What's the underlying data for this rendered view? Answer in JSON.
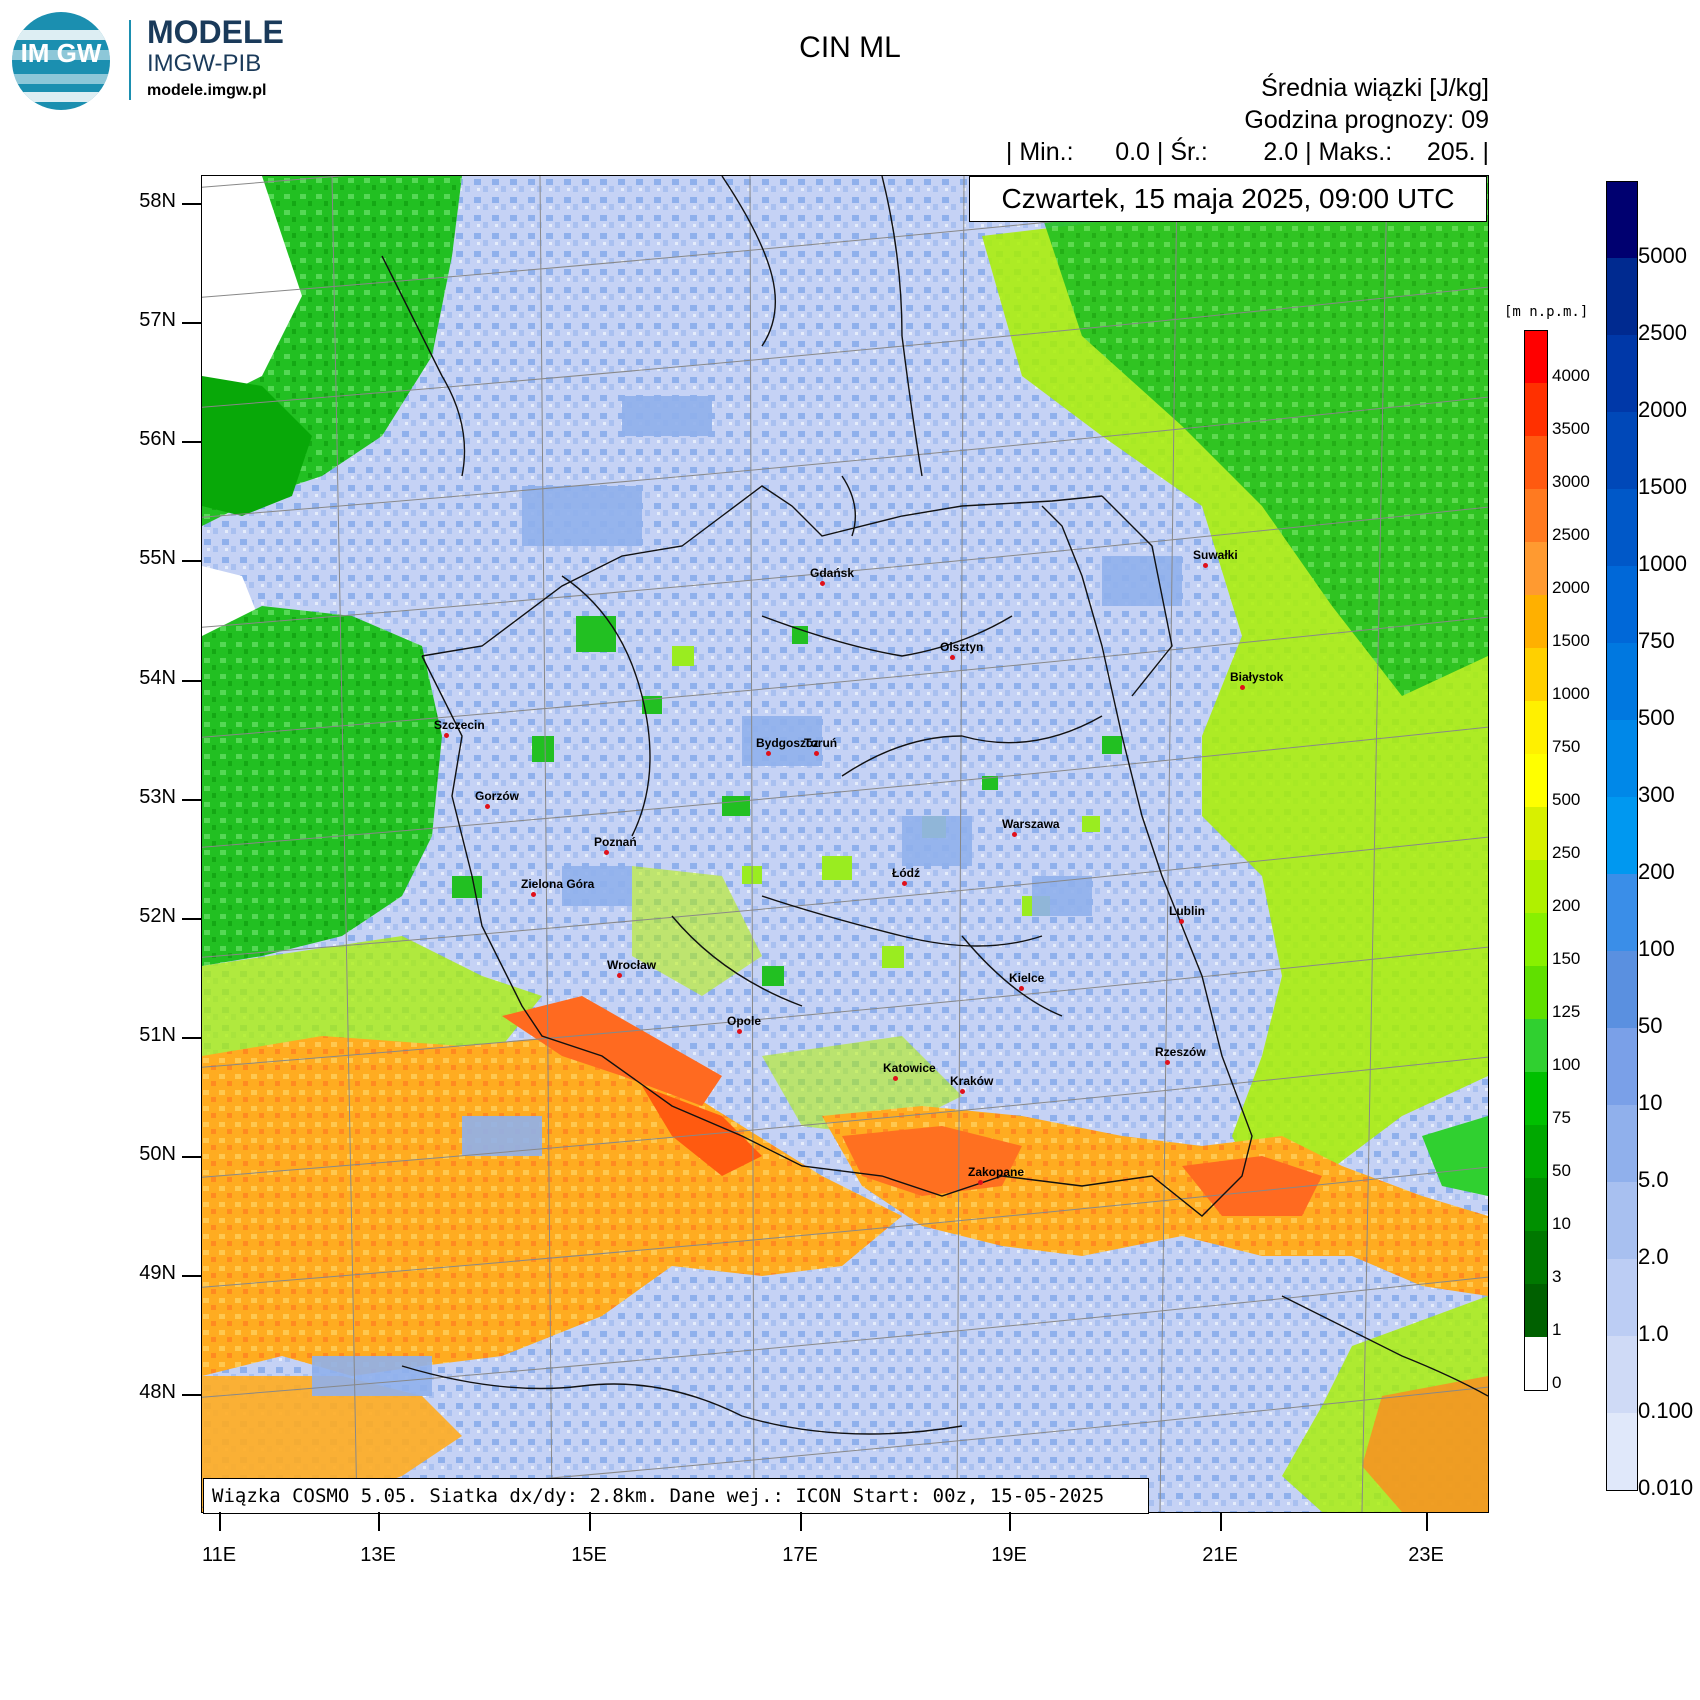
{
  "brand": {
    "logo_text": "IM GW",
    "name": "MODELE",
    "institute": "IMGW-PIB",
    "website": "modele.imgw.pl"
  },
  "header": {
    "title": "CIN ML",
    "line1": "Średnia wiązki [J/kg]",
    "line2": "Godzina prognozy: 09",
    "line3": "| Min.:      0.0 | Śr.:        2.0 | Maks.:     205. |",
    "date": "Czwartek, 15 maja 2025, 09:00 UTC"
  },
  "footer": "Wiązka COSMO 5.05. Siatka dx/dy: 2.8km. Dane wej.: ICON Start: 00z, 15-05-2025",
  "axes": {
    "lat_labels": [
      "58N",
      "57N",
      "56N",
      "55N",
      "54N",
      "53N",
      "52N",
      "51N",
      "50N",
      "49N",
      "48N"
    ],
    "lon_labels": [
      "11E",
      "13E",
      "15E",
      "17E",
      "19E",
      "21E",
      "23E"
    ]
  },
  "cities": [
    {
      "name": "Gdańsk"
    },
    {
      "name": "Olsztyn"
    },
    {
      "name": "Suwałki"
    },
    {
      "name": "Białystok"
    },
    {
      "name": "Szczecin"
    },
    {
      "name": "Bydgoszcz"
    },
    {
      "name": "Toruń"
    },
    {
      "name": "Gorzów"
    },
    {
      "name": "Poznań"
    },
    {
      "name": "Warszawa"
    },
    {
      "name": "Zielona Góra"
    },
    {
      "name": "Łódź"
    },
    {
      "name": "Lublin"
    },
    {
      "name": "Wrocław"
    },
    {
      "name": "Kielce"
    },
    {
      "name": "Opole"
    },
    {
      "name": "Rzeszów"
    },
    {
      "name": "Katowice"
    },
    {
      "name": "Kraków"
    },
    {
      "name": "Zakopane"
    }
  ],
  "legend_terrain": {
    "title": "[m n.p.m.]",
    "labels": [
      "4000",
      "3500",
      "3000",
      "2500",
      "2000",
      "1500",
      "1000",
      "750",
      "500",
      "250",
      "200",
      "150",
      "125",
      "100",
      "75",
      "50",
      "10",
      "3",
      "1",
      "0"
    ],
    "colors": [
      "#ff0000",
      "#ff3000",
      "#ff5a10",
      "#ff7a20",
      "#ff9a30",
      "#ffb000",
      "#ffd000",
      "#fff000",
      "#ffff00",
      "#d8f000",
      "#b0f000",
      "#88f000",
      "#60e000",
      "#30d030",
      "#00c000",
      "#00a800",
      "#009000",
      "#007800",
      "#006000",
      "#ffffff"
    ]
  },
  "legend_cin": {
    "labels": [
      "5000",
      "2500",
      "2000",
      "1500",
      "1000",
      "750",
      "500",
      "300",
      "200",
      "100",
      "50",
      "10",
      "5.0",
      "2.0",
      "1.0",
      "0.100",
      "0.010"
    ],
    "colors": [
      "#000070",
      "#002a90",
      "#0038a8",
      "#0048b8",
      "#0058c8",
      "#0068d8",
      "#0078e0",
      "#0088e8",
      "#0098f0",
      "#3a8ee8",
      "#5a90e0",
      "#7aa0e8",
      "#90b0ec",
      "#a8c0f0",
      "#bccdf4",
      "#cfdaf6",
      "#e0e8fa"
    ]
  },
  "field_colors": {
    "cin_low": "#c5d2f5",
    "cin_mid": "#8fb0ec",
    "green_dark": "#00b000",
    "green_light": "#8ee800",
    "orange": "#ffa000",
    "red_orange": "#ff6020"
  }
}
